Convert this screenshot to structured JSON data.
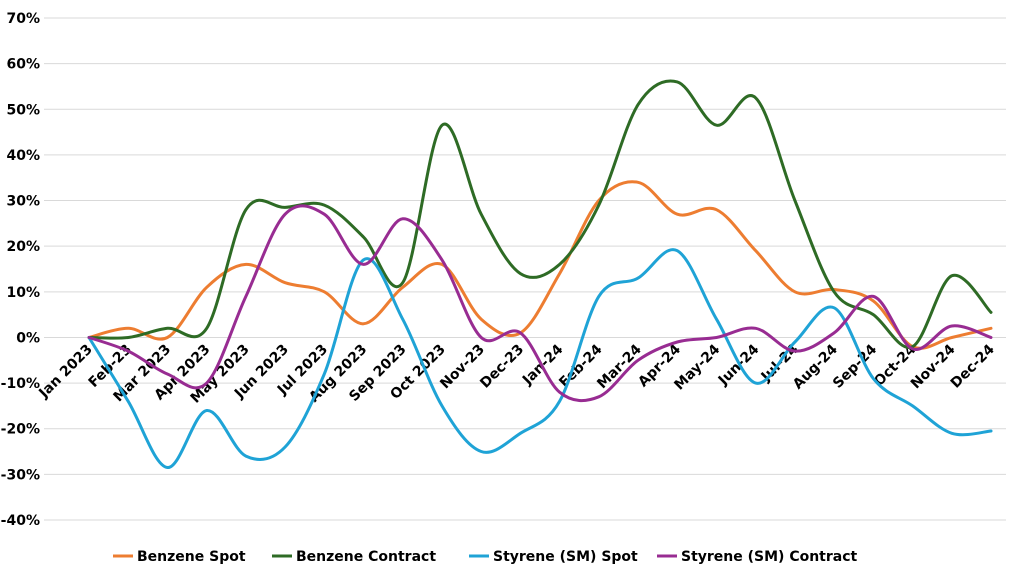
{
  "chart_data": {
    "type": "line",
    "categories": [
      "Jan 2023",
      "Feb-23",
      "Mar 2023",
      "Apr 2023",
      "May 2023",
      "Jun 2023",
      "Jul 2023",
      "Aug 2023",
      "Sep 2023",
      "Oct 2023",
      "Nov-23",
      "Dec-23",
      "Jan-24",
      "Feb-24",
      "Mar-24",
      "Apr-24",
      "May-24",
      "Jun-24",
      "Jul-24",
      "Aug-24",
      "Sep-24",
      "Oct-24",
      "Nov-24",
      "Dec-24"
    ],
    "ylim": [
      -40,
      70
    ],
    "yticks": [
      -40,
      -30,
      -20,
      -10,
      0,
      10,
      20,
      30,
      40,
      50,
      60,
      70
    ],
    "ytick_labels": [
      "-40%",
      "-30%",
      "-20%",
      "-10%",
      "0%",
      "10%",
      "20%",
      "30%",
      "40%",
      "50%",
      "60%",
      "70%"
    ],
    "grid": "horizontal",
    "legend_position": "bottom",
    "series": [
      {
        "name": "Benzene Spot",
        "color": "#ED7D31",
        "values": [
          0,
          2,
          0,
          11,
          16,
          12,
          10,
          3,
          11,
          16,
          4,
          1,
          14,
          30,
          34,
          27,
          28,
          19,
          10,
          10.5,
          8,
          -2,
          0,
          2
        ]
      },
      {
        "name": "Benzene Contract",
        "color": "#2E6B25",
        "values": [
          0,
          0,
          2,
          2,
          28,
          28.5,
          29,
          22,
          12,
          46.5,
          27,
          14,
          16,
          29,
          51,
          56,
          46.5,
          52.5,
          30,
          10,
          5,
          -2,
          13.5,
          5.5
        ]
      },
      {
        "name": "Styrene (SM) Spot",
        "color": "#1FA3D6",
        "values": [
          0,
          -14,
          -28.5,
          -16,
          -26,
          -24,
          -8,
          17,
          4,
          -15,
          -25,
          -21,
          -14,
          9,
          13,
          19,
          4,
          -10,
          -1,
          6.5,
          -9,
          -15,
          -21,
          -20.5
        ]
      },
      {
        "name": "Styrene (SM) Contract",
        "color": "#982C92",
        "values": [
          0,
          -3,
          -8,
          -10,
          9,
          27,
          27,
          16,
          26,
          17,
          0,
          1,
          -12,
          -13,
          -5,
          -1,
          0,
          2,
          -3,
          1,
          9,
          -2.5,
          2.5,
          0
        ]
      }
    ]
  }
}
